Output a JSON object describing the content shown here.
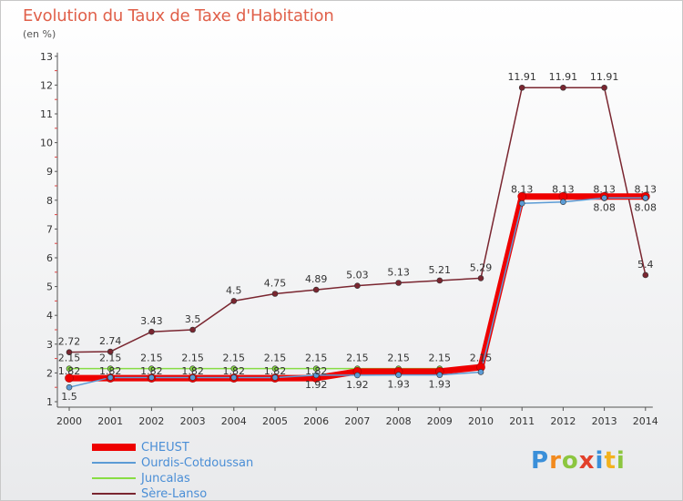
{
  "chart_data": {
    "type": "line",
    "title": "Evolution du Taux de Taxe d'Habitation",
    "subtitle": "(en %)",
    "x": [
      "2000",
      "2001",
      "2002",
      "2003",
      "2004",
      "2005",
      "2006",
      "2007",
      "2008",
      "2009",
      "2010",
      "2011",
      "2012",
      "2013",
      "2014"
    ],
    "y_ticks": [
      "1",
      "2",
      "3",
      "4",
      "5",
      "6",
      "7",
      "8",
      "9",
      "10",
      "11",
      "12",
      "13"
    ],
    "ylim": [
      1,
      13
    ],
    "legend_position": "bottom-left",
    "series": [
      {
        "name": "CHEUST",
        "color": "#ee0000",
        "values": [
          1.82,
          1.82,
          1.82,
          1.82,
          1.82,
          1.82,
          1.82,
          2.05,
          2.05,
          2.05,
          2.2,
          8.13,
          8.13,
          8.13,
          8.13
        ],
        "labels": [
          "1.82",
          "1.82",
          "1.82",
          "1.82",
          "1.82",
          "1.82",
          "1.82",
          "",
          "",
          "",
          "",
          "8.13",
          "8.13",
          "8.13",
          "8.13"
        ]
      },
      {
        "name": "Ourdis-Cotdoussan",
        "color": "#5b9bd5",
        "values": [
          1.5,
          1.84,
          1.84,
          1.84,
          1.84,
          1.84,
          1.92,
          1.92,
          1.93,
          1.93,
          2.03,
          7.89,
          7.94,
          8.08,
          8.08
        ],
        "labels": [
          "1.5",
          "",
          "",
          "",
          "",
          "",
          "1.92",
          "1.92",
          "1.93",
          "1.93",
          "",
          "",
          "",
          "8.08",
          "8.08"
        ]
      },
      {
        "name": "Juncalas",
        "color": "#88dd44",
        "values": [
          2.15,
          2.15,
          2.15,
          2.15,
          2.15,
          2.15,
          2.15,
          2.15,
          2.15,
          2.15,
          2.15,
          8.07,
          8.07,
          8.07,
          8.07
        ],
        "labels": [
          "2.15",
          "2.15",
          "2.15",
          "2.15",
          "2.15",
          "2.15",
          "2.15",
          "2.15",
          "2.15",
          "2.15",
          "2.15",
          "",
          "",
          "",
          ""
        ]
      },
      {
        "name": "Sère-Lanso",
        "color": "#7a2630",
        "values": [
          2.72,
          2.74,
          3.43,
          3.5,
          4.5,
          4.75,
          4.89,
          5.03,
          5.13,
          5.21,
          5.29,
          11.91,
          11.91,
          11.91,
          5.4
        ],
        "labels": [
          "2.72",
          "2.74",
          "3.43",
          "3.5",
          "4.5",
          "4.75",
          "4.89",
          "5.03",
          "5.13",
          "5.21",
          "5.29",
          "11.91",
          "11.91",
          "11.91",
          "5.4"
        ]
      }
    ]
  },
  "logo": {
    "text": [
      "P",
      "r",
      "o",
      "x",
      "i",
      "t",
      "i"
    ],
    "colors": [
      "#3a8fd9",
      "#f28a1e",
      "#8cc63f",
      "#e2402a",
      "#3a8fd9",
      "#f2b21e",
      "#8cc63f"
    ]
  }
}
